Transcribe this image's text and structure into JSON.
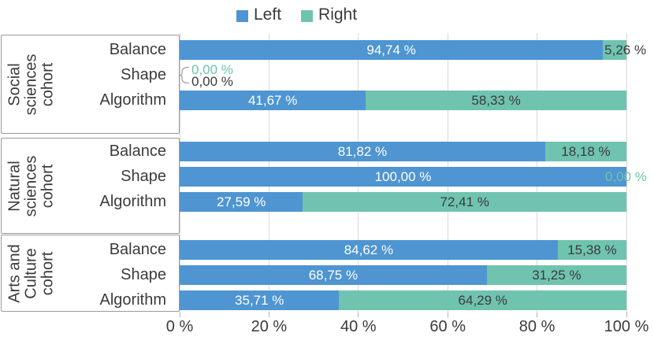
{
  "legend": {
    "items": [
      {
        "label": "Left",
        "color": "#4e95d1"
      },
      {
        "label": "Right",
        "color": "#6fc3af"
      }
    ]
  },
  "chart_data": {
    "type": "bar",
    "orientation": "horizontal",
    "stacked": true,
    "title": "",
    "xlabel": "",
    "ylabel": "",
    "xlim": [
      0,
      100
    ],
    "grid": true,
    "legend_position": "top-center",
    "value_format": "percent, comma decimal separator",
    "series": [
      "Left",
      "Right"
    ],
    "x_ticks": [
      {
        "value": 0,
        "label": "0 %"
      },
      {
        "value": 20,
        "label": "20 %"
      },
      {
        "value": 40,
        "label": "40 %"
      },
      {
        "value": 60,
        "label": "60 %"
      },
      {
        "value": 80,
        "label": "80 %"
      },
      {
        "value": 100,
        "label": "100 %"
      }
    ],
    "groups": [
      {
        "cohort_label_lines": [
          "Social",
          "sciences",
          "cohort"
        ],
        "rows": [
          {
            "category": "Balance",
            "left": 94.74,
            "right": 5.26,
            "left_label": "94,74 %",
            "right_label": "5,26 %"
          },
          {
            "category": "Shape",
            "left": 0,
            "right": 0,
            "left_label": "0,00 %",
            "right_label": "0,00 %"
          },
          {
            "category": "Algorithm",
            "left": 41.67,
            "right": 58.33,
            "left_label": "41,67 %",
            "right_label": "58,33 %"
          }
        ]
      },
      {
        "cohort_label_lines": [
          "Natural",
          "sciences",
          "cohort"
        ],
        "rows": [
          {
            "category": "Balance",
            "left": 81.82,
            "right": 18.18,
            "left_label": "81,82 %",
            "right_label": "18,18 %"
          },
          {
            "category": "Shape",
            "left": 100,
            "right": 0,
            "left_label": "100,00 %",
            "right_label": "0,00 %"
          },
          {
            "category": "Algorithm",
            "left": 27.59,
            "right": 72.41,
            "left_label": "27,59 %",
            "right_label": "72,41 %"
          }
        ]
      },
      {
        "cohort_label_lines": [
          "Arts and",
          "Culture",
          "cohort"
        ],
        "rows": [
          {
            "category": "Balance",
            "left": 84.62,
            "right": 15.38,
            "left_label": "84,62 %",
            "right_label": "15,38 %"
          },
          {
            "category": "Shape",
            "left": 68.75,
            "right": 31.25,
            "left_label": "68,75 %",
            "right_label": "31,25 %"
          },
          {
            "category": "Algorithm",
            "left": 35.71,
            "right": 64.29,
            "left_label": "35,71 %",
            "right_label": "64,29 %"
          }
        ]
      }
    ]
  },
  "colors": {
    "left_series": "#4e95d1",
    "right_series": "#6fc3af",
    "label_on_left_segment": "#ffffff",
    "label_on_right_segment": "#3b3b3b",
    "outside_right_label": "#6fc3af",
    "outside_left_label": "#3b3b3b",
    "gridline": "#d9d9d9",
    "tick": "#b3b3b3",
    "axis_text": "#3b3b3b",
    "cohort_box_border": "#9a9a9a",
    "background": "#ffffff"
  }
}
